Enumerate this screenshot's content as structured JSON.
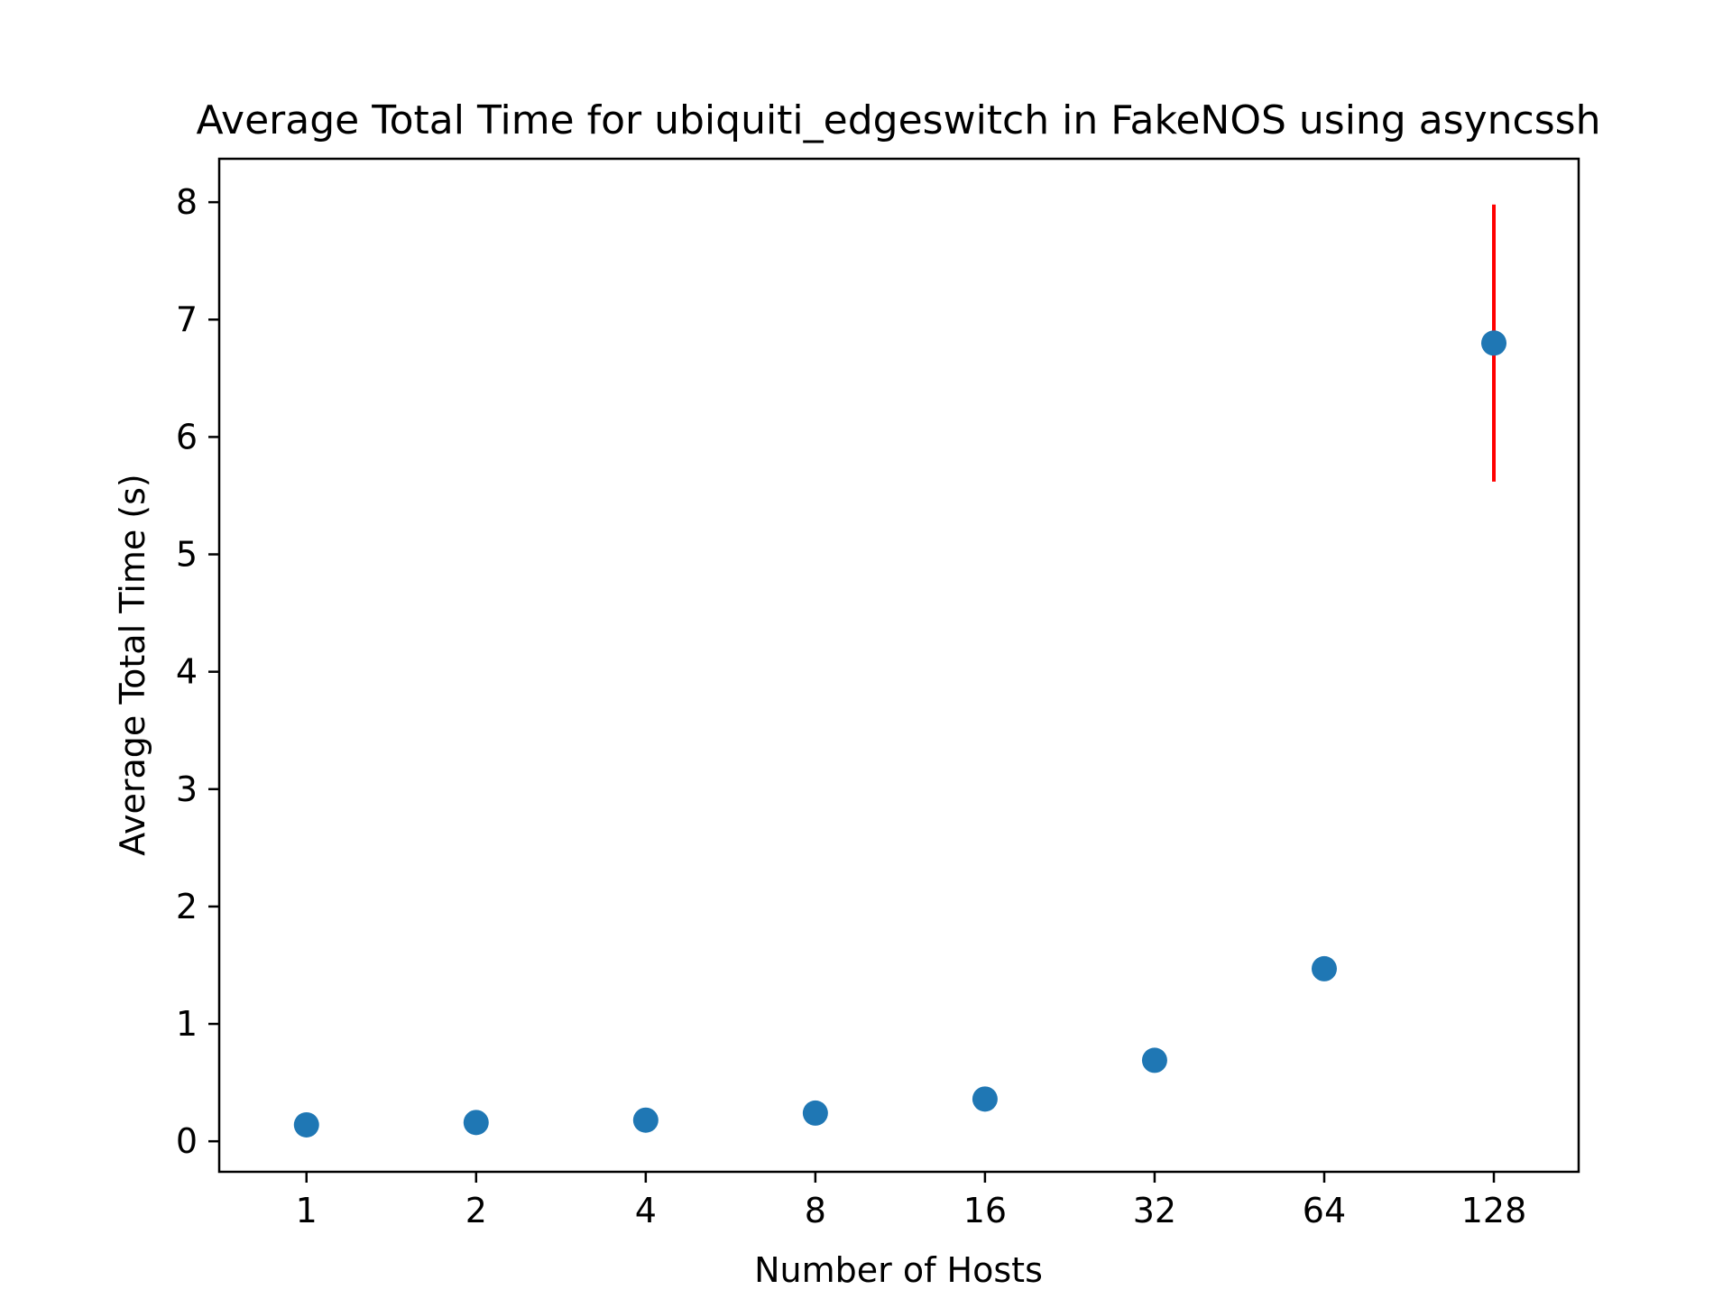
{
  "chart_data": {
    "type": "scatter",
    "title": "Average Total Time for ubiquiti_edgeswitch in FakeNOS using asyncssh",
    "xlabel": "Number of Hosts",
    "ylabel": "Average Total Time (s)",
    "x_scale": "log2",
    "xlim": [
      0.7,
      181
    ],
    "ylim": [
      -0.26,
      8.37
    ],
    "x_ticks": [
      1,
      2,
      4,
      8,
      16,
      32,
      64,
      128
    ],
    "x_tick_labels": [
      "1",
      "2",
      "4",
      "8",
      "16",
      "32",
      "64",
      "128"
    ],
    "y_ticks": [
      0,
      1,
      2,
      3,
      4,
      5,
      6,
      7,
      8
    ],
    "y_tick_labels": [
      "0",
      "1",
      "2",
      "3",
      "4",
      "5",
      "6",
      "7",
      "8"
    ],
    "grid": false,
    "series": [
      {
        "name": "Average Total Time",
        "x": [
          1,
          2,
          4,
          8,
          16,
          32,
          64,
          128
        ],
        "y": [
          0.14,
          0.16,
          0.18,
          0.24,
          0.36,
          0.69,
          1.47,
          6.8
        ],
        "yerr": [
          0,
          0,
          0,
          0,
          0,
          0,
          0,
          1.18
        ],
        "color": "#1f77b4",
        "error_color": "#ff0000"
      }
    ]
  }
}
